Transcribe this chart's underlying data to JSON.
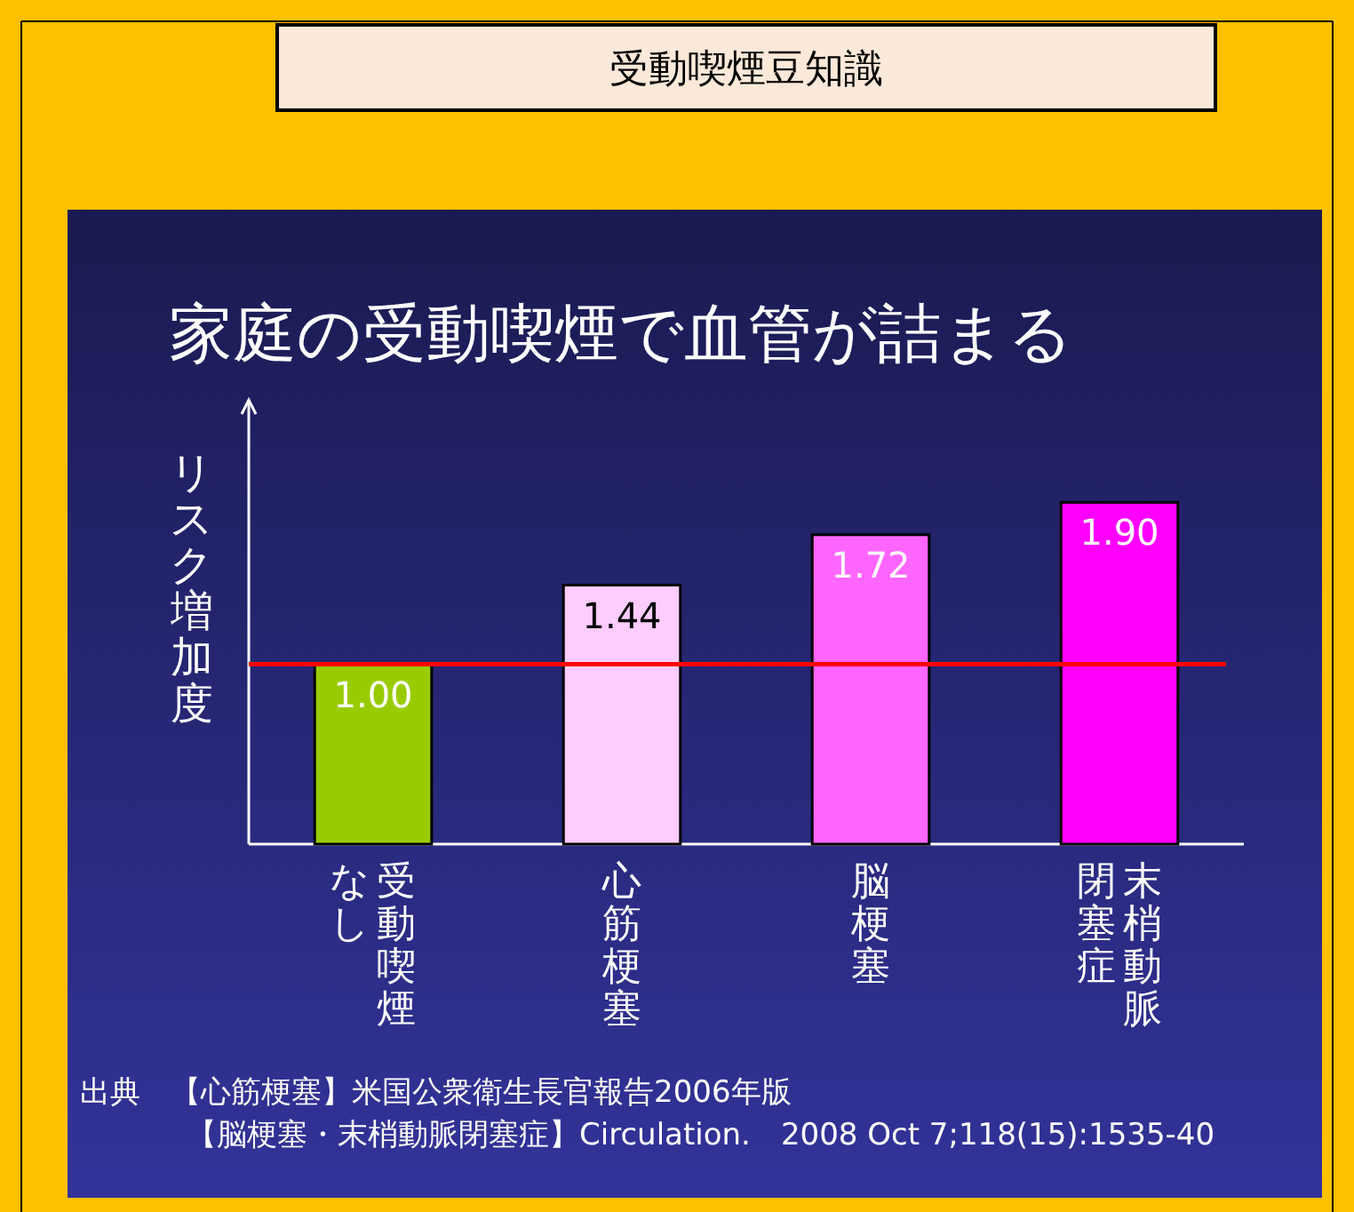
{
  "chart_data": {
    "type": "bar",
    "title": "受動喫煙豆知識",
    "subtitle": "家庭の受動喫煙で血管が詰まる",
    "ylabel": "リスク増加度",
    "categories": [
      "受動喫煙なし",
      "心筋梗塞",
      "脳梗塞",
      "末梢動脈閉塞症"
    ],
    "values": [
      1.0,
      1.44,
      1.72,
      1.9
    ],
    "colors": [
      "#99cc00",
      "#ffccff",
      "#ff66ff",
      "#ff00ff"
    ],
    "value_labels": [
      "1.00",
      "1.44",
      "1.72",
      "1.90"
    ],
    "ref_lines": [
      {
        "axis": "y",
        "value": 1.0,
        "color": "#ff0000",
        "line_style": "solid"
      }
    ],
    "annotations": [
      "出典　【心筋梗塞】米国公衆衛生長官報告2006年版",
      "【脳梗塞・末梢動脈閉塞症】Circulation.　2008 Oct 7;118(15):1535-40"
    ]
  }
}
